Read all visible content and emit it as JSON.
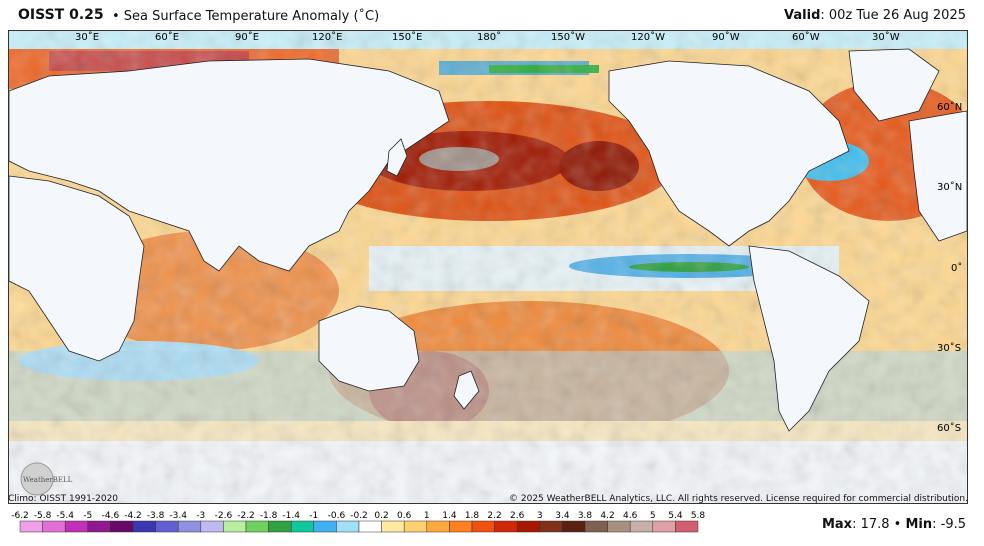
{
  "header": {
    "title": "OISST 0.25",
    "subtitle": "• Sea Surface Temperature Anomaly (˚C)",
    "valid_label": "Valid",
    "valid_value": ": 00z Tue 26 Aug 2025"
  },
  "map": {
    "lon_labels": [
      "30˚E",
      "60˚E",
      "90˚E",
      "120˚E",
      "150˚E",
      "180˚",
      "150˚W",
      "120˚W",
      "90˚W",
      "60˚W",
      "30˚W"
    ],
    "lat_labels": [
      "60˚N",
      "30˚N",
      "0˚",
      "30˚S",
      "60˚S"
    ],
    "logo_text": "WeatherBELL"
  },
  "footer": {
    "climo": "Climo: OISST 1991-2020",
    "copyright": "© 2025 WeatherBELL Analytics, LLC. All rights reserved. License required for commercial distribution."
  },
  "colorbar": {
    "ticks": [
      "-6.2",
      "-5.8",
      "-5.4",
      "-5",
      "-4.6",
      "-4.2",
      "-3.8",
      "-3.4",
      "-3",
      "-2.6",
      "-2.2",
      "-1.8",
      "-1.4",
      "-1",
      "-0.6",
      "-0.2",
      "0.2",
      "0.6",
      "1",
      "1.4",
      "1.8",
      "2.2",
      "2.6",
      "3",
      "3.4",
      "3.8",
      "4.2",
      "4.6",
      "5",
      "5.4",
      "5.8"
    ],
    "colors": [
      "#f0a0e8",
      "#e070d8",
      "#c030b8",
      "#901890",
      "#680868",
      "#3838b0",
      "#6060d0",
      "#9090e0",
      "#c0b8f0",
      "#b8f0a0",
      "#70d060",
      "#30a040",
      "#10c8a0",
      "#40b0f0",
      "#a0e0f8",
      "#ffffff",
      "#ffe8a0",
      "#ffd070",
      "#ffa840",
      "#ff8020",
      "#f05010",
      "#d02808",
      "#a81800",
      "#803018",
      "#5a2010",
      "#806050",
      "#a89080",
      "#c8b0a8",
      "#e0a0a8",
      "#d06070"
    ]
  },
  "stats": {
    "max_label": "Max",
    "max_value": ": 17.8 • ",
    "min_label": "Min",
    "min_value": ": -9.5"
  }
}
